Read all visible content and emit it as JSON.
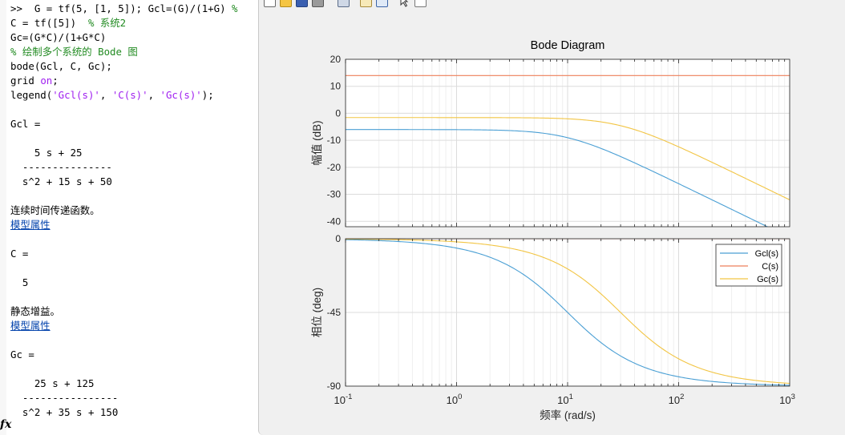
{
  "command_window": {
    "lines": [
      [
        {
          "t": ">>  G = tf(5, [1, 5]); Gcl=(G)/(1+G) "
        },
        {
          "t": "%",
          "c": "cm"
        }
      ],
      [
        {
          "t": "C = tf([5])  "
        },
        {
          "t": "% 系统2",
          "c": "cm"
        }
      ],
      [
        {
          "t": "Gc=(G*C)/(1+G*C)"
        }
      ],
      [
        {
          "t": "% 绘制多个系统的 Bode 图",
          "c": "cm"
        }
      ],
      [
        {
          "t": "bode(Gcl, C, Gc);"
        }
      ],
      [
        {
          "t": "grid "
        },
        {
          "t": "on",
          "c": "st"
        },
        {
          "t": ";"
        }
      ],
      [
        {
          "t": "legend("
        },
        {
          "t": "'Gcl(s)'",
          "c": "st"
        },
        {
          "t": ", "
        },
        {
          "t": "'C(s)'",
          "c": "st"
        },
        {
          "t": ", "
        },
        {
          "t": "'Gc(s)'",
          "c": "st"
        },
        {
          "t": ");"
        }
      ],
      [],
      [
        {
          "t": "Gcl ="
        }
      ],
      [],
      [
        {
          "t": "    5 s + 25"
        }
      ],
      [
        {
          "t": "  ---------------"
        }
      ],
      [
        {
          "t": "  s^2 + 15 s + 50"
        }
      ],
      [],
      [
        {
          "t": "连续时间传递函数。",
          "c": "cjk"
        }
      ],
      [
        {
          "t": "模型属性",
          "c": "link"
        }
      ],
      [],
      [
        {
          "t": "C ="
        }
      ],
      [],
      [
        {
          "t": "  5"
        }
      ],
      [],
      [
        {
          "t": "静态增益。",
          "c": "cjk"
        }
      ],
      [
        {
          "t": "模型属性",
          "c": "link"
        }
      ],
      [],
      [
        {
          "t": "Gc ="
        }
      ],
      [],
      [
        {
          "t": "    25 s + 125"
        }
      ],
      [
        {
          "t": "  ----------------"
        }
      ],
      [
        {
          "t": "  s^2 + 35 s + 150"
        }
      ]
    ],
    "prompt_symbol": "fx"
  },
  "figure": {
    "toolbar_icons": [
      "new-figure-icon",
      "open-file-icon",
      "save-figure-icon",
      "print-figure-icon",
      "link-plot-icon",
      "insert-colorbar-icon",
      "insert-legend-icon",
      "edit-plot-arrow-icon",
      "property-inspector-icon"
    ],
    "colors": {
      "background": "#f0f0f0",
      "axes_bg": "#ffffff",
      "grid": "#e3e3e3",
      "text": "#262626"
    }
  },
  "chart_data": {
    "type": "line",
    "title": "Bode Diagram",
    "xlabel": "频率  (rad/s)",
    "xscale": "log",
    "xlim": [
      0.1,
      1000
    ],
    "x_ticks": [
      {
        "base": "10",
        "exp": "-1"
      },
      {
        "base": "10",
        "exp": "0"
      },
      {
        "base": "10",
        "exp": "1"
      },
      {
        "base": "10",
        "exp": "2"
      },
      {
        "base": "10",
        "exp": "3"
      }
    ],
    "grid": true,
    "legend_position": "top-right (phase axes)",
    "series": [
      {
        "name": "Gcl(s)",
        "color": "#4a9fd4",
        "num": [
          5,
          25
        ],
        "den": [
          1,
          15,
          50
        ]
      },
      {
        "name": "C(s)",
        "color": "#ee7f5a",
        "num": [
          5
        ],
        "den": [
          1
        ]
      },
      {
        "name": "Gc(s)",
        "color": "#f2c544",
        "num": [
          25,
          125
        ],
        "den": [
          1,
          35,
          150
        ]
      }
    ],
    "magnitude": {
      "ylabel": "幅值 (dB)",
      "ylim": [
        -42,
        20
      ],
      "y_ticks": [
        "20",
        "10",
        "0",
        "-10",
        "-20",
        "-30",
        "-40"
      ],
      "samples": [
        {
          "x": 0.1,
          "Gcl(s)": -6.0,
          "C(s)": 14.0,
          "Gc(s)": -1.6
        },
        {
          "x": 1,
          "Gcl(s)": -6.1,
          "C(s)": 14.0,
          "Gc(s)": -1.6
        },
        {
          "x": 10,
          "Gcl(s)": -9.0,
          "C(s)": 14.0,
          "Gc(s)": -2.2
        },
        {
          "x": 100,
          "Gcl(s)": -26.0,
          "C(s)": 14.0,
          "Gc(s)": -12.0
        },
        {
          "x": 1000,
          "Gcl(s)": -46.0,
          "C(s)": 14.0,
          "Gc(s)": -32.0
        }
      ]
    },
    "phase": {
      "ylabel": "相位 (deg)",
      "ylim": [
        -90,
        0
      ],
      "y_ticks": [
        "0",
        "-45",
        "-90"
      ],
      "samples": [
        {
          "x": 0.1,
          "Gcl(s)": -1.1,
          "C(s)": 0,
          "Gc(s)": -0.5
        },
        {
          "x": 1,
          "Gcl(s)": -7.9,
          "C(s)": 0,
          "Gc(s)": -3.5
        },
        {
          "x": 10,
          "Gcl(s)": -43.8,
          "C(s)": 0,
          "Gc(s)": -19.5
        },
        {
          "x": 100,
          "Gcl(s)": -85.4,
          "C(s)": 0,
          "Gc(s)": -72.6
        },
        {
          "x": 1000,
          "Gcl(s)": -89.6,
          "C(s)": 0,
          "Gc(s)": -88.0
        }
      ]
    }
  }
}
